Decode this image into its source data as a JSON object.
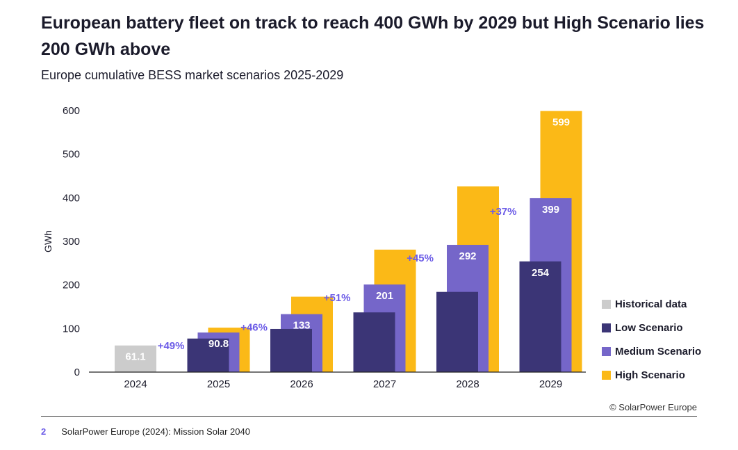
{
  "header": {
    "title": "European battery fleet on track to reach 400 GWh by 2029 but High Scenario lies 200 GWh above",
    "subtitle": "Europe cumulative BESS market scenarios 2025-2029"
  },
  "footer": {
    "copyright": "© SolarPower Europe",
    "footnote_number": "2",
    "footnote_text": "SolarPower Europe (2024): Mission Solar 2040"
  },
  "legend": [
    {
      "label": "Historical data",
      "color": "#cccccc"
    },
    {
      "label": "Low Scenario",
      "color": "#3b3576"
    },
    {
      "label": "Medium Scenario",
      "color": "#7566c9"
    },
    {
      "label": "High Scenario",
      "color": "#fbb917"
    }
  ],
  "chart_data": {
    "type": "bar",
    "ylabel": "GWh",
    "ylim": [
      0,
      600
    ],
    "yticks": [
      0,
      100,
      200,
      300,
      400,
      500,
      600
    ],
    "categories": [
      "2024",
      "2025",
      "2026",
      "2027",
      "2028",
      "2029"
    ],
    "series": [
      {
        "name": "Historical data",
        "color": "#cccccc",
        "values": [
          61.1,
          null,
          null,
          null,
          null,
          null
        ],
        "labels": [
          "61.1",
          "",
          "",
          "",
          "",
          ""
        ]
      },
      {
        "name": "Low Scenario",
        "color": "#3b3576",
        "values": [
          null,
          77,
          99,
          137,
          184,
          254
        ],
        "labels": [
          "",
          "",
          "",
          "",
          "",
          "254"
        ]
      },
      {
        "name": "Medium Scenario",
        "color": "#7566c9",
        "values": [
          null,
          90.8,
          133,
          201,
          292,
          399
        ],
        "labels": [
          "",
          "90.8",
          "133",
          "201",
          "292",
          "399"
        ]
      },
      {
        "name": "High Scenario",
        "color": "#fbb917",
        "values": [
          null,
          102,
          173,
          281,
          426,
          599
        ],
        "labels": [
          "",
          "",
          "",
          "",
          "",
          "599"
        ]
      }
    ],
    "growth_labels": [
      "",
      "+49%",
      "+46%",
      "+51%",
      "+45%",
      "+37%"
    ],
    "growth_color": "#6c5ce7",
    "label_color": "#ffffff",
    "grid": false
  }
}
